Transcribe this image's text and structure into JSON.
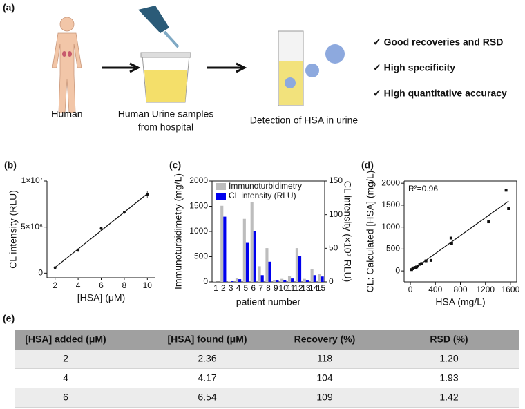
{
  "panel_a": {
    "label": "(a)",
    "steps": [
      [
        "Human"
      ],
      [
        "Human Urine samples",
        "from hospital"
      ],
      [
        "Detection of HSA in urine"
      ]
    ],
    "highlights": [
      "✓ Good recoveries and RSD",
      "✓ High specificity",
      "✓ High quantitative accuracy"
    ]
  },
  "chart_data": [
    {
      "type": "scatter",
      "label": "(b)",
      "marker": "circle",
      "fit": true,
      "frame": false,
      "x_label": "[HSA] (μM)",
      "y_label": "CL intensity (RLU)",
      "x": [
        2,
        4,
        6,
        8,
        10
      ],
      "values": [
        600000,
        2500000,
        4850000,
        6600000,
        8550000
      ],
      "errors": [
        100000,
        200000,
        150000,
        150000,
        350000
      ],
      "color": "#111111",
      "xlim": [
        1.3,
        10.7
      ],
      "xticks": [
        2,
        4,
        6,
        8,
        10
      ],
      "ylim": [
        -500000,
        10000000
      ],
      "yticks": [
        0,
        {
          "value": 5000000,
          "label": "5×10⁶"
        },
        {
          "value": 10000000,
          "label": "1×10⁷"
        }
      ]
    },
    {
      "type": "bar",
      "label": "(c)",
      "frame": true,
      "x_label": "patient number",
      "y_label": "Immunoturbidimetry (mg/L)",
      "y2_label": "CL intensity (×10⁷ RLU)",
      "categories": [
        "1",
        "2",
        "3",
        "4",
        "5",
        "6",
        "7",
        "8",
        "9",
        "10",
        "11",
        "12",
        "13",
        "14",
        "15"
      ],
      "series": [
        {
          "name": "Immunoturbidimetry",
          "color": "#bdbdbd",
          "values": [
            10,
            1510,
            10,
            80,
            1250,
            1580,
            310,
            670,
            40,
            60,
            110,
            670,
            60,
            250,
            150
          ]
        },
        {
          "name": "CL intensity (RLU)",
          "color": "#0000ee",
          "axis": "y2",
          "values": [
            0,
            97,
            1,
            4,
            58,
            75,
            10,
            30,
            2,
            3,
            5,
            38,
            2,
            10,
            8
          ]
        }
      ],
      "ylim": [
        0,
        2000
      ],
      "yticks": [
        0,
        500,
        1000,
        1500,
        2000
      ],
      "y2lim": [
        0,
        150
      ],
      "y2ticks": [
        0,
        50,
        100,
        150
      ],
      "legend": "top-left"
    },
    {
      "type": "scatter",
      "label": "(d)",
      "marker": "square",
      "fit": true,
      "frame": true,
      "x_label": "HSA (mg/L)",
      "y_label": "CL: Calculated [HSA] (mg/L)",
      "annotation": "R²=0.96",
      "x": [
        20,
        40,
        60,
        80,
        100,
        120,
        150,
        180,
        250,
        330,
        650,
        660,
        1250,
        1530,
        1570
      ],
      "values": [
        30,
        50,
        70,
        80,
        90,
        110,
        150,
        170,
        230,
        240,
        750,
        620,
        1120,
        1840,
        1420
      ],
      "color": "#111111",
      "xlim": [
        -100,
        1700
      ],
      "xticks": [
        0,
        400,
        800,
        1200,
        1600
      ],
      "ylim": [
        -250,
        2050
      ],
      "yticks": [
        0,
        500,
        1000,
        1500,
        2000
      ]
    }
  ],
  "table": {
    "label": "(e)",
    "header": [
      "[HSA] added (μM)",
      "[HSA] found (μM)",
      "Recovery (%)",
      "RSD (%)"
    ],
    "rows": [
      [
        "2",
        "2.36",
        "118",
        "1.20"
      ],
      [
        "4",
        "4.17",
        "104",
        "1.93"
      ],
      [
        "6",
        "6.54",
        "109",
        "1.42"
      ]
    ]
  }
}
